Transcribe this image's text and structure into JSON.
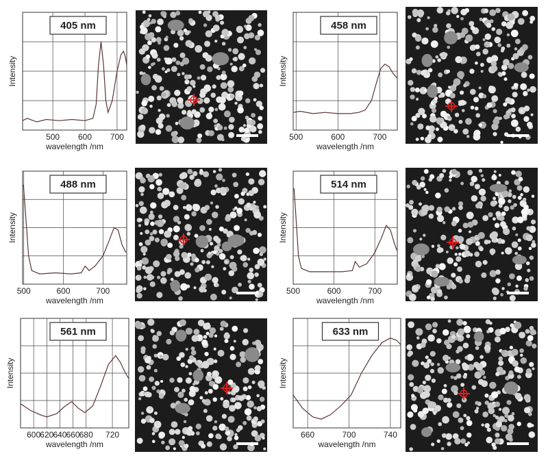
{
  "chart_data": [
    {
      "type": "line",
      "title": "405 nm",
      "x_label": "wavelength /nm",
      "y_label": "Intensity",
      "xlim": [
        406,
        730
      ],
      "xticks": [
        500,
        600,
        700
      ],
      "ylim": [
        0,
        100
      ],
      "grid": true,
      "series": [
        {
          "color": "#5a3434",
          "x": [
            406,
            420,
            450,
            480,
            520,
            560,
            600,
            625,
            635,
            642,
            650,
            658,
            665,
            672,
            685,
            700,
            712,
            720,
            726,
            730
          ],
          "values": [
            8,
            10,
            7,
            9,
            8,
            9,
            8,
            10,
            22,
            55,
            75,
            55,
            25,
            15,
            25,
            50,
            64,
            67,
            62,
            55
          ]
        }
      ]
    },
    {
      "type": "line",
      "title": "458 nm",
      "x_label": "wavelength /nm",
      "y_label": "Intensity",
      "xlim": [
        493,
        742
      ],
      "xticks": [
        500,
        600,
        700
      ],
      "ylim": [
        0,
        100
      ],
      "grid": true,
      "series": [
        {
          "color": "#5a3434",
          "x": [
            493,
            510,
            540,
            570,
            600,
            630,
            650,
            665,
            680,
            692,
            702,
            712,
            722,
            732,
            742
          ],
          "values": [
            15,
            16,
            14,
            15,
            14,
            14,
            15,
            17,
            25,
            40,
            52,
            56,
            54,
            48,
            44
          ]
        }
      ]
    },
    {
      "type": "line",
      "title": "488 nm",
      "x_label": "wavelength /nm",
      "y_label": "Intensity",
      "xlim": [
        497,
        760
      ],
      "xticks": [
        500,
        600,
        700
      ],
      "ylim": [
        0,
        100
      ],
      "grid": true,
      "series": [
        {
          "color": "#5a3434",
          "x": [
            499,
            505,
            512,
            520,
            540,
            580,
            620,
            645,
            655,
            665,
            680,
            700,
            715,
            728,
            738,
            748,
            758
          ],
          "values": [
            88,
            60,
            25,
            12,
            9,
            10,
            9,
            10,
            16,
            12,
            16,
            25,
            38,
            50,
            48,
            35,
            28
          ]
        }
      ]
    },
    {
      "type": "line",
      "title": "514 nm",
      "x_label": "wavelength /nm",
      "y_label": "Intensity",
      "xlim": [
        500,
        755
      ],
      "xticks": [
        500,
        600,
        700
      ],
      "ylim": [
        0,
        100
      ],
      "grid": true,
      "series": [
        {
          "color": "#5a3434",
          "x": [
            502,
            507,
            513,
            520,
            540,
            580,
            620,
            645,
            652,
            662,
            680,
            700,
            715,
            728,
            738,
            748,
            754
          ],
          "values": [
            85,
            58,
            25,
            14,
            11,
            11,
            11,
            12,
            20,
            15,
            18,
            28,
            40,
            52,
            48,
            36,
            30
          ]
        }
      ]
    },
    {
      "type": "line",
      "title": "561 nm",
      "x_label": "wavelength /nm",
      "y_label": "Intensity",
      "xlim": [
        580,
        745
      ],
      "xticks": [
        600,
        620,
        640,
        660,
        680,
        720
      ],
      "ylim": [
        0,
        100
      ],
      "grid": true,
      "series": [
        {
          "color": "#5a3434",
          "x": [
            580,
            595,
            610,
            620,
            635,
            648,
            658,
            668,
            678,
            690,
            702,
            714,
            725,
            732,
            740,
            745
          ],
          "values": [
            22,
            16,
            12,
            10,
            13,
            20,
            24,
            18,
            14,
            20,
            38,
            58,
            66,
            60,
            50,
            45
          ]
        }
      ]
    },
    {
      "type": "line",
      "title": "633 nm",
      "x_label": "wavelength /nm",
      "y_label": "Intensity",
      "xlim": [
        646,
        750
      ],
      "xticks": [
        660,
        700,
        740
      ],
      "ylim": [
        0,
        100
      ],
      "grid": true,
      "series": [
        {
          "color": "#5a3434",
          "x": [
            646,
            655,
            665,
            673,
            682,
            692,
            702,
            712,
            722,
            732,
            740,
            746,
            750
          ],
          "values": [
            30,
            18,
            10,
            8,
            12,
            20,
            30,
            50,
            66,
            78,
            82,
            80,
            76
          ]
        }
      ]
    }
  ]
}
